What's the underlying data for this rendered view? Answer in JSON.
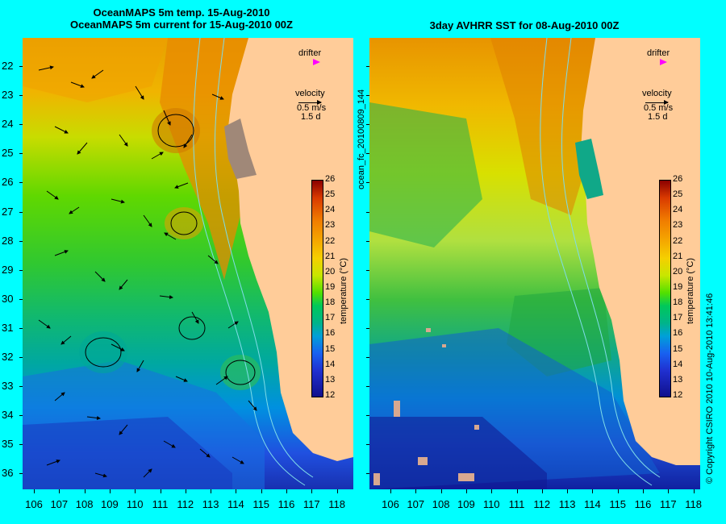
{
  "left_panel": {
    "title_line1": "OceanMAPS 5m temp. 15-Aug-2010",
    "title_line2": "OceanMAPS 5m current for 15-Aug-2010 00Z",
    "legend": {
      "drifter_label": "drifter",
      "velocity_label": "velocity",
      "velocity_scale": "0.5 m/s",
      "velocity_time": "1.5 d"
    }
  },
  "right_panel": {
    "title": "3day AVHRR SST for 08-Aug-2010 00Z",
    "legend": {
      "drifter_label": "drifter",
      "velocity_label": "velocity",
      "velocity_scale": "0.5 m/s",
      "velocity_time": "1.5 d"
    }
  },
  "colorbar": {
    "title": "temperature (°C)",
    "ticks": [
      "26",
      "25",
      "24",
      "23",
      "22",
      "21",
      "20",
      "19",
      "18",
      "17",
      "16",
      "15",
      "14",
      "13",
      "12"
    ],
    "range": [
      12,
      26
    ]
  },
  "axes": {
    "latitudes": [
      "22",
      "23",
      "24",
      "25",
      "26",
      "27",
      "28",
      "29",
      "30",
      "31",
      "32",
      "33",
      "34",
      "35",
      "36"
    ],
    "longitudes": [
      "106",
      "107",
      "108",
      "109",
      "110",
      "111",
      "112",
      "113",
      "114",
      "115",
      "116",
      "117",
      "118"
    ]
  },
  "side_texts": {
    "forecast_id": "ocean_fc_20100809_144",
    "copyright": "© Copyright CSIRO 2010   10-Aug-2010 13:41:46"
  },
  "colors": {
    "background": "#00ffff",
    "land": "#ffcc99",
    "drifter": "#ff00ff"
  }
}
